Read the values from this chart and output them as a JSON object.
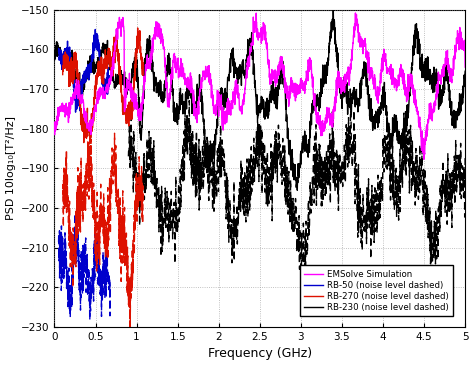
{
  "title": "",
  "xlabel": "Frequency (GHz)",
  "ylabel": "PSD 10log₁₀[T²/Hz]",
  "xlim": [
    0,
    5
  ],
  "ylim": [
    -230,
    -150
  ],
  "yticks": [
    -230,
    -220,
    -210,
    -200,
    -190,
    -180,
    -170,
    -160,
    -150
  ],
  "xticks": [
    0,
    0.5,
    1.0,
    1.5,
    2.0,
    2.5,
    3.0,
    3.5,
    4.0,
    4.5,
    5.0
  ],
  "legend_entries": [
    "EMSolve Simulation",
    "RB-50 (noise level dashed)",
    "RB-270 (noise level dashed)",
    "RB-230 (noise level dashed)"
  ],
  "colors": {
    "emsolve": "#FF00FF",
    "rb50": "#0000CC",
    "rb270": "#DD1100",
    "rb230": "#000000"
  },
  "background_color": "#FFFFFF",
  "grid_color": "#999999"
}
